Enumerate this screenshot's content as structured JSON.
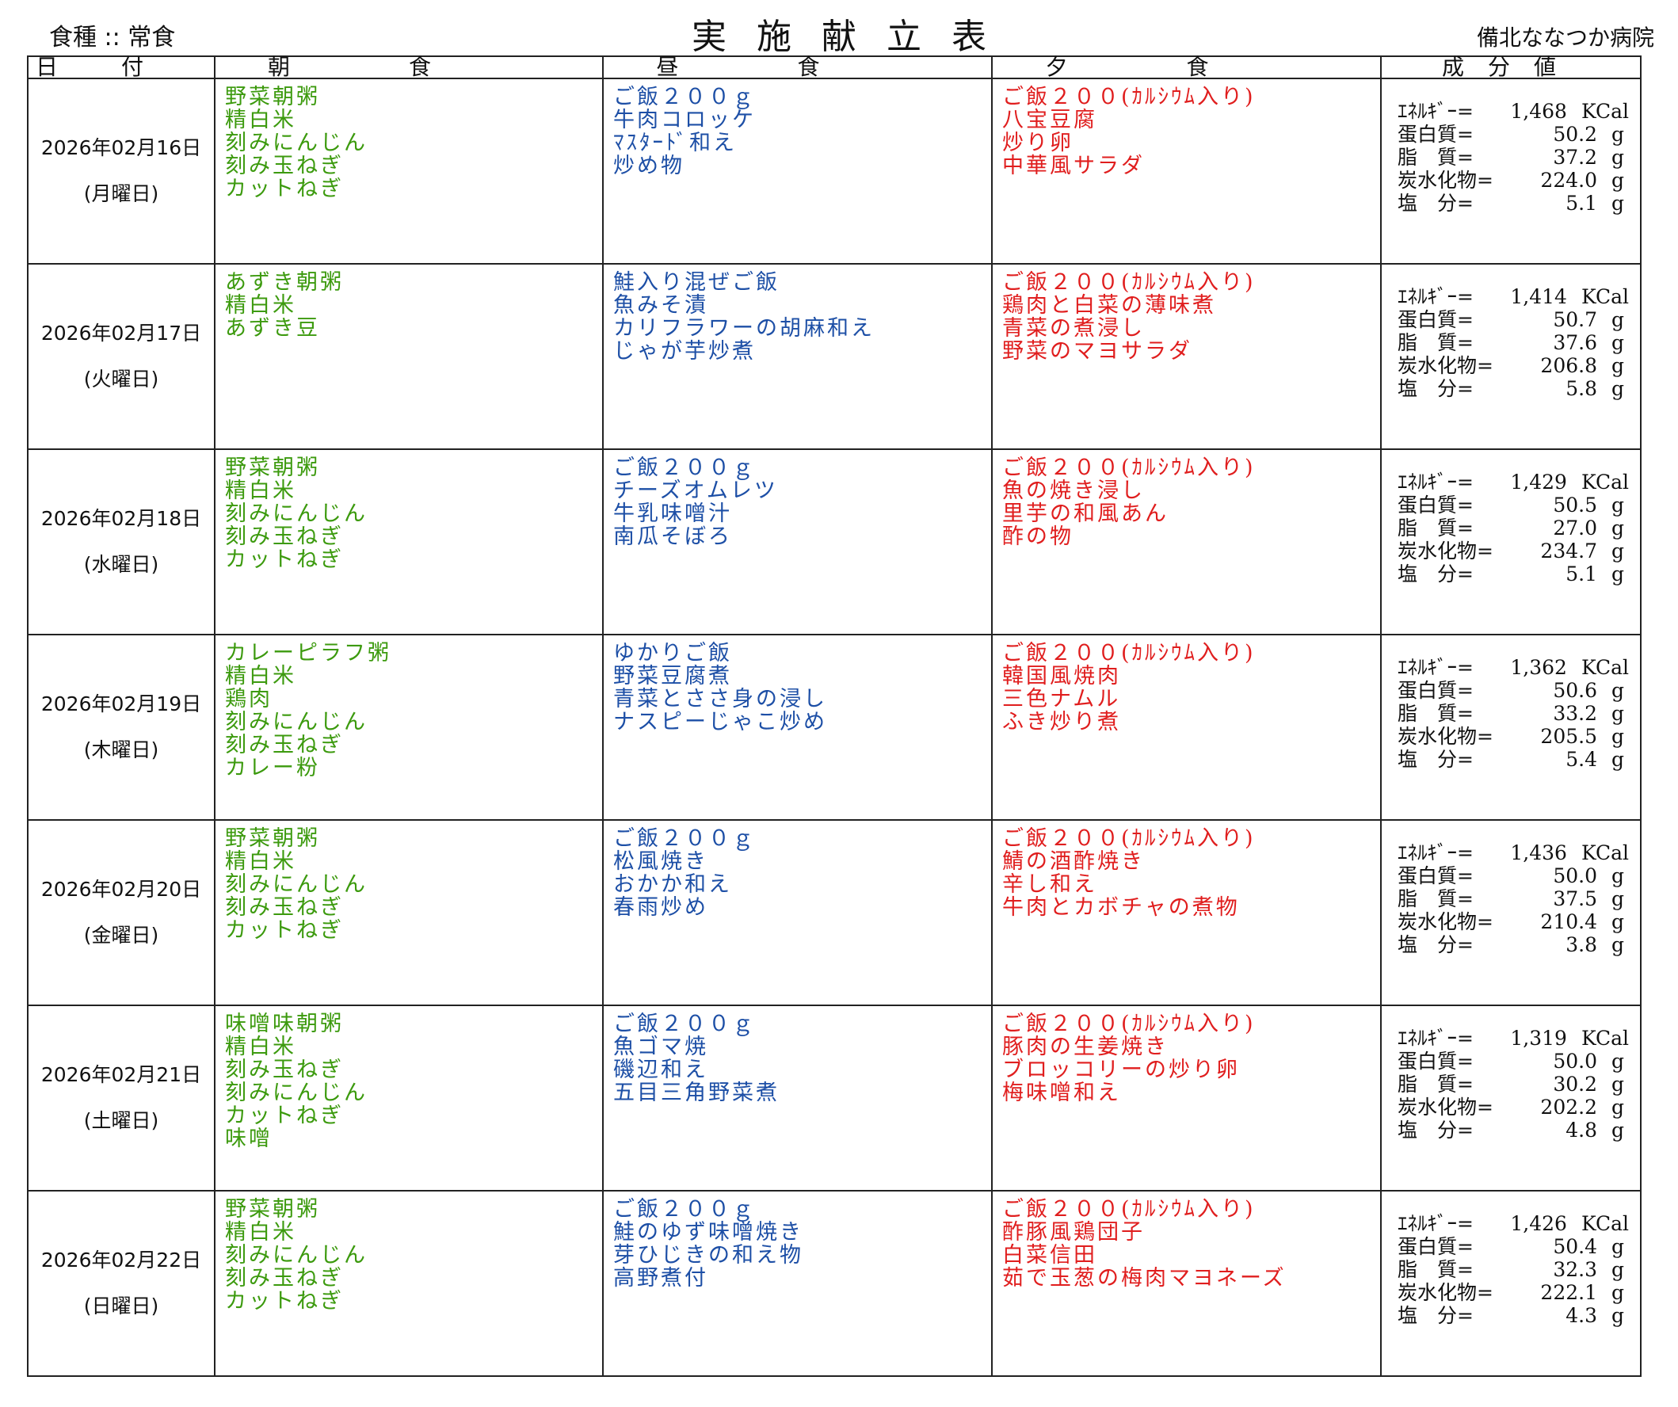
{
  "header": {
    "diet_label": "食種 :: 常食",
    "title": "実施献立表",
    "hospital": "備北ななつか病院"
  },
  "columns": {
    "date": "日付",
    "breakfast": "朝食",
    "lunch": "昼食",
    "dinner": "夕食",
    "nutrition": "成分値"
  },
  "nutrient_labels": {
    "energy": "ｴﾈﾙｷﾞｰ=",
    "protein": "蛋白質=",
    "fat": "脂　質=",
    "carbs": "炭水化物=",
    "salt": "塩　分="
  },
  "units": {
    "energy": "KCal",
    "gram": "g"
  },
  "days": [
    {
      "date": "2026年02月16日",
      "weekday": "(月曜日)",
      "breakfast": [
        "野菜朝粥",
        "精白米",
        "刻みにんじん",
        "刻み玉ねぎ",
        "カットねぎ"
      ],
      "lunch": [
        "ご飯２００ｇ",
        "牛肉コロッケ",
        "ﾏｽﾀｰﾄﾞ和え",
        "炒め物"
      ],
      "dinner": [
        "ご飯２００(ｶﾙｼｳﾑ入り)",
        "八宝豆腐",
        "炒り卵",
        "中華風サラダ"
      ],
      "energy": "1,468",
      "protein": "50.2",
      "fat": "37.2",
      "carbs": "224.0",
      "salt": "5.1"
    },
    {
      "date": "2026年02月17日",
      "weekday": "(火曜日)",
      "breakfast": [
        "あずき朝粥",
        "精白米",
        "あずき豆"
      ],
      "lunch": [
        "鮭入り混ぜご飯",
        "魚みそ漬",
        "カリフラワーの胡麻和え",
        "じゃが芋炒煮"
      ],
      "dinner": [
        "ご飯２００(ｶﾙｼｳﾑ入り)",
        "鶏肉と白菜の薄味煮",
        "青菜の煮浸し",
        "野菜のマヨサラダ"
      ],
      "energy": "1,414",
      "protein": "50.7",
      "fat": "37.6",
      "carbs": "206.8",
      "salt": "5.8"
    },
    {
      "date": "2026年02月18日",
      "weekday": "(水曜日)",
      "breakfast": [
        "野菜朝粥",
        "精白米",
        "刻みにんじん",
        "刻み玉ねぎ",
        "カットねぎ"
      ],
      "lunch": [
        "ご飯２００ｇ",
        "チーズオムレツ",
        "牛乳味噌汁",
        "南瓜そぼろ"
      ],
      "dinner": [
        "ご飯２００(ｶﾙｼｳﾑ入り)",
        "魚の焼き浸し",
        "里芋の和風あん",
        "酢の物"
      ],
      "energy": "1,429",
      "protein": "50.5",
      "fat": "27.0",
      "carbs": "234.7",
      "salt": "5.1"
    },
    {
      "date": "2026年02月19日",
      "weekday": "(木曜日)",
      "breakfast": [
        "カレーピラフ粥",
        "精白米",
        "鶏肉",
        "刻みにんじん",
        "刻み玉ねぎ",
        "カレー粉"
      ],
      "lunch": [
        "ゆかりご飯",
        "野菜豆腐煮",
        "青菜とささ身の浸し",
        "ナスピーじゃこ炒め"
      ],
      "dinner": [
        "ご飯２００(ｶﾙｼｳﾑ入り)",
        "韓国風焼肉",
        "三色ナムル",
        "ふき炒り煮"
      ],
      "energy": "1,362",
      "protein": "50.6",
      "fat": "33.2",
      "carbs": "205.5",
      "salt": "5.4"
    },
    {
      "date": "2026年02月20日",
      "weekday": "(金曜日)",
      "breakfast": [
        "野菜朝粥",
        "精白米",
        "刻みにんじん",
        "刻み玉ねぎ",
        "カットねぎ"
      ],
      "lunch": [
        "ご飯２００ｇ",
        "松風焼き",
        "おかか和え",
        "春雨炒め"
      ],
      "dinner": [
        "ご飯２００(ｶﾙｼｳﾑ入り)",
        "鯖の酒酢焼き",
        "辛し和え",
        "牛肉とカボチャの煮物"
      ],
      "energy": "1,436",
      "protein": "50.0",
      "fat": "37.5",
      "carbs": "210.4",
      "salt": "3.8"
    },
    {
      "date": "2026年02月21日",
      "weekday": "(土曜日)",
      "breakfast": [
        "味噌味朝粥",
        "精白米",
        "刻み玉ねぎ",
        "刻みにんじん",
        "カットねぎ",
        "味噌"
      ],
      "lunch": [
        "ご飯２００ｇ",
        "魚ゴマ焼",
        "磯辺和え",
        "五目三角野菜煮"
      ],
      "dinner": [
        "ご飯２００(ｶﾙｼｳﾑ入り)",
        "豚肉の生姜焼き",
        "ブロッコリーの炒り卵",
        "梅味噌和え"
      ],
      "energy": "1,319",
      "protein": "50.0",
      "fat": "30.2",
      "carbs": "202.2",
      "salt": "4.8"
    },
    {
      "date": "2026年02月22日",
      "weekday": "(日曜日)",
      "breakfast": [
        "野菜朝粥",
        "精白米",
        "刻みにんじん",
        "刻み玉ねぎ",
        "カットねぎ"
      ],
      "lunch": [
        "ご飯２００ｇ",
        "鮭のゆず味噌焼き",
        "芽ひじきの和え物",
        "高野煮付"
      ],
      "dinner": [
        "ご飯２００(ｶﾙｼｳﾑ入り)",
        "酢豚風鶏団子",
        "白菜信田",
        "茹で玉葱の梅肉マヨネーズ"
      ],
      "energy": "1,426",
      "protein": "50.4",
      "fat": "32.3",
      "carbs": "222.1",
      "salt": "4.3"
    }
  ]
}
